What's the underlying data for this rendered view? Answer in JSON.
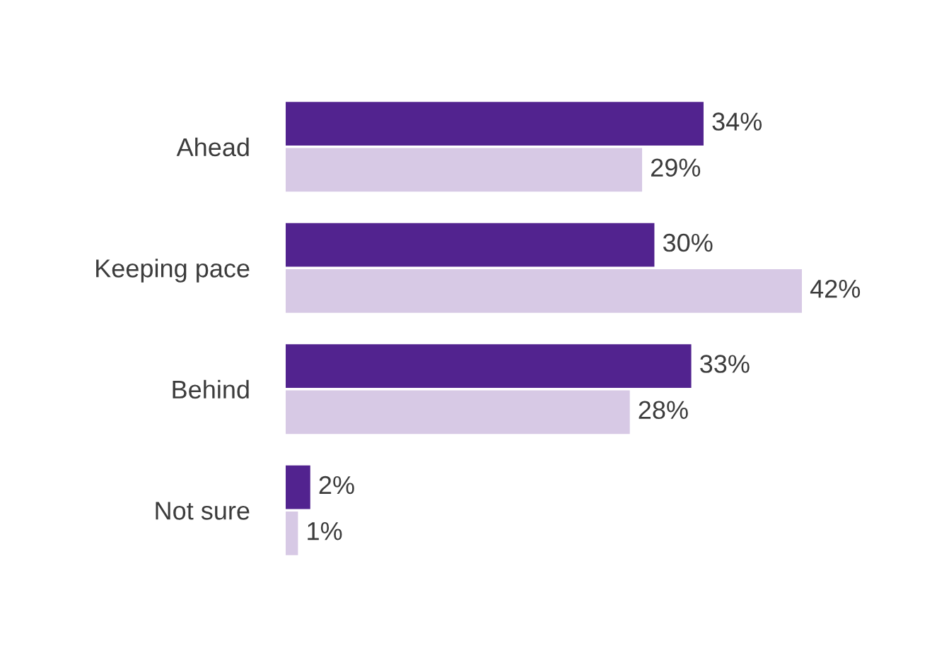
{
  "chart_data": {
    "type": "bar",
    "orientation": "horizontal",
    "categories": [
      "Ahead",
      "Keeping pace",
      "Behind",
      "Not sure"
    ],
    "series": [
      {
        "color": "#52238f",
        "values": [
          34,
          30,
          33,
          2
        ],
        "value_labels": [
          "34%",
          "30%",
          "33%",
          "2%"
        ]
      },
      {
        "color": "#d7c9e5",
        "values": [
          29,
          42,
          28,
          1
        ],
        "value_labels": [
          "29%",
          "42%",
          "28%",
          "1%"
        ]
      }
    ],
    "tick_labels": "y",
    "grid": false,
    "legend": false
  }
}
